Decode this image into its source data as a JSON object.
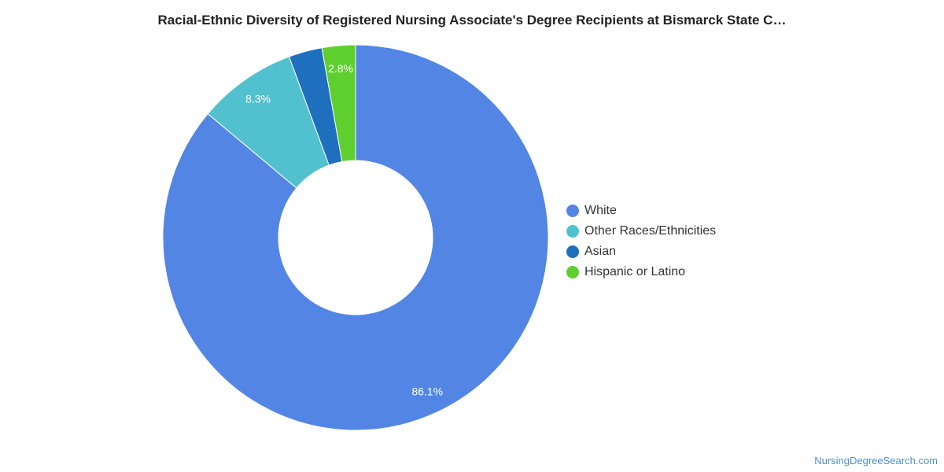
{
  "chart_data": {
    "type": "pie",
    "title": "Racial-Ethnic Diversity of Registered Nursing Associate's Degree Recipients at Bismarck State C…",
    "donut": true,
    "legend_position": "right",
    "slices": [
      {
        "name": "White",
        "value": 86.1,
        "label": "86.1%",
        "color": "#5386e4"
      },
      {
        "name": "Other Races/Ethnicities",
        "value": 8.3,
        "label": "8.3%",
        "color": "#52c1cf"
      },
      {
        "name": "Asian",
        "value": 2.8,
        "label": "",
        "color": "#1f6fbf"
      },
      {
        "name": "Hispanic or Latino",
        "value": 2.8,
        "label": "2.8%",
        "color": "#5fcf2f"
      }
    ]
  },
  "credit": "NursingDegreeSearch.com"
}
